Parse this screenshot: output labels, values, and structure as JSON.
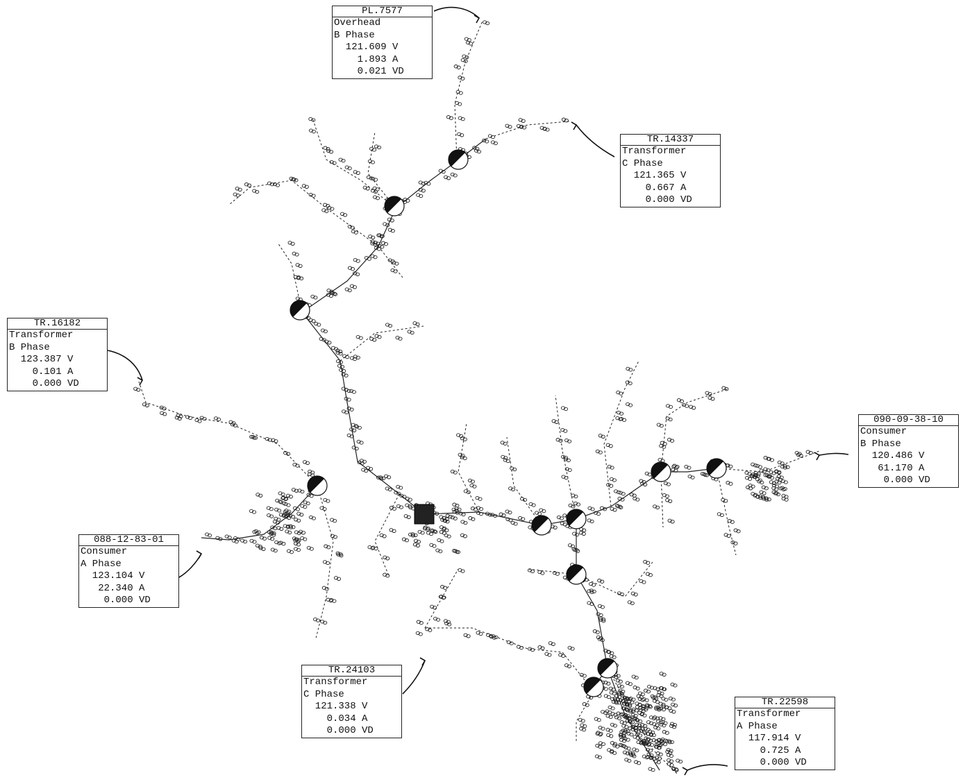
{
  "callouts": [
    {
      "id": "PL.7577",
      "type": "Overhead",
      "phase": "B Phase",
      "voltage": "121.609 V",
      "current": "1.893 A",
      "drop": "0.021 VD"
    },
    {
      "id": "TR.14337",
      "type": "Transformer",
      "phase": "C Phase",
      "voltage": "121.365 V",
      "current": "0.667 A",
      "drop": "0.000 VD"
    },
    {
      "id": "TR.16182",
      "type": "Transformer",
      "phase": "B Phase",
      "voltage": "123.387 V",
      "current": "0.101 A",
      "drop": "0.000 VD"
    },
    {
      "id": "090-09-38-10",
      "type": "Consumer",
      "phase": "B Phase",
      "voltage": "120.486 V",
      "current": "61.170 A",
      "drop": "0.000 VD"
    },
    {
      "id": "088-12-83-01",
      "type": "Consumer",
      "phase": "A Phase",
      "voltage": "123.104 V",
      "current": "22.340 A",
      "drop": "0.000 VD"
    },
    {
      "id": "TR.24103",
      "type": "Transformer",
      "phase": "C Phase",
      "voltage": "121.338 V",
      "current": "0.034 A",
      "drop": "0.000 VD"
    },
    {
      "id": "TR.22598",
      "type": "Transformer",
      "phase": "A Phase",
      "voltage": "117.914 V",
      "current": "0.725 A",
      "drop": "0.000 VD"
    }
  ]
}
